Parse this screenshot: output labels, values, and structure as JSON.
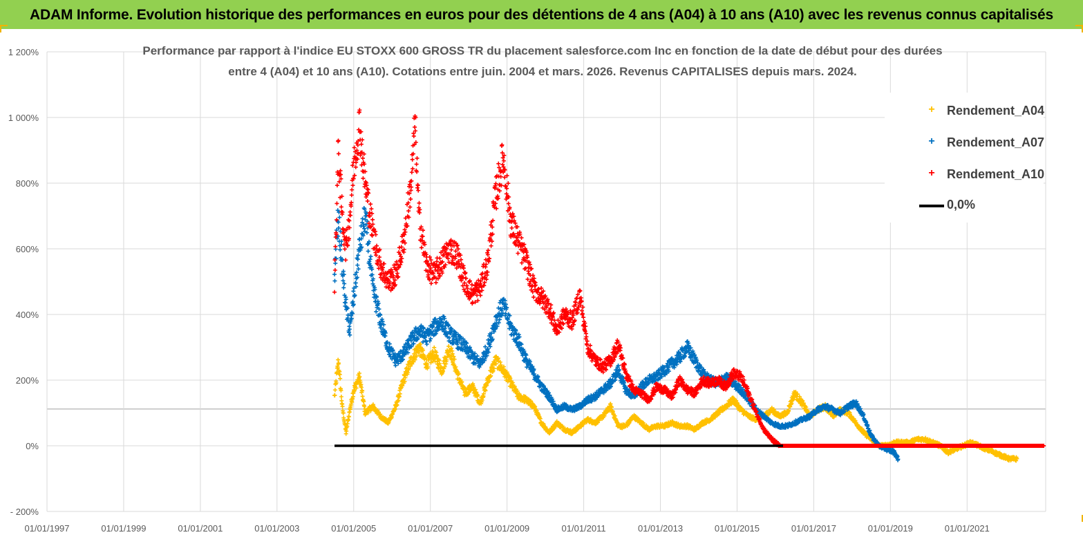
{
  "banner": {
    "title": "ADAM Informe. Evolution historique des performances en euros pour des détentions de 4 ans (A04) à 10 ans (A10) avec les revenus connus capitalisés"
  },
  "colors": {
    "banner_bg": "#92d050",
    "corner_accent": "#f0b400",
    "A04": "#ffc000",
    "A07": "#0070c0",
    "A10": "#ff0000",
    "zero_line": "#000000",
    "grid": "#d9d9d9",
    "axis_text": "#595959"
  },
  "chart_data": {
    "type": "scatter",
    "title_line1": "Performance par rapport à l'indice EU STOXX 600 GROSS TR  du placement salesforce.com Inc en fonction de la date de début pour des durées",
    "title_line2": "entre 4 (A04) et 10 ans (A10). Cotations entre juin. 2004 et mars. 2026. Revenus CAPITALISES depuis mars. 2024.",
    "xlabel": "",
    "ylabel": "",
    "y_ticks": [
      "1 200%",
      "1 000%",
      "800%",
      "600%",
      "400%",
      "200%",
      "0%",
      "- 200%"
    ],
    "y_tick_values": [
      1200,
      1000,
      800,
      600,
      400,
      200,
      0,
      -200
    ],
    "ylim": [
      -200,
      1200
    ],
    "x_ticks": [
      "01/01/1997",
      "01/01/1999",
      "01/01/2001",
      "01/01/2003",
      "01/01/2005",
      "01/01/2007",
      "01/01/2009",
      "01/01/2011",
      "01/01/2013",
      "01/01/2015",
      "01/01/2017",
      "01/01/2019",
      "01/01/2021"
    ],
    "x_tick_years": [
      1997,
      1999,
      2001,
      2003,
      2005,
      2007,
      2009,
      2011,
      2013,
      2015,
      2017,
      2019,
      2021
    ],
    "xlim": [
      1997.0,
      2023.05
    ],
    "grid": true,
    "legend_position": "top-right",
    "legend": [
      "Rendement_A04",
      "Rendement_A07",
      "Rendement_A10",
      "0,0%"
    ],
    "series": [
      {
        "name": "Rendement_A04",
        "marker": "+",
        "x": [
          2004.5,
          2004.6,
          2004.7,
          2004.8,
          2004.9,
          2005.0,
          2005.15,
          2005.3,
          2005.5,
          2005.7,
          2005.9,
          2006.1,
          2006.3,
          2006.5,
          2006.7,
          2006.9,
          2007.1,
          2007.3,
          2007.5,
          2007.7,
          2007.9,
          2008.1,
          2008.3,
          2008.5,
          2008.7,
          2008.9,
          2009.1,
          2009.3,
          2009.5,
          2009.7,
          2009.9,
          2010.1,
          2010.3,
          2010.5,
          2010.7,
          2010.9,
          2011.1,
          2011.3,
          2011.5,
          2011.7,
          2011.9,
          2012.1,
          2012.3,
          2012.5,
          2012.7,
          2012.9,
          2013.1,
          2013.3,
          2013.5,
          2013.7,
          2013.9,
          2014.1,
          2014.3,
          2014.5,
          2014.7,
          2014.9,
          2015.1,
          2015.3,
          2015.5,
          2015.7,
          2015.9,
          2016.1,
          2016.3,
          2016.5,
          2016.7,
          2016.9,
          2017.1,
          2017.3,
          2017.5,
          2017.7,
          2017.9,
          2018.1,
          2018.3,
          2018.5,
          2018.7,
          2018.9,
          2019.1,
          2019.3,
          2019.5,
          2019.7,
          2019.9,
          2020.1,
          2020.3,
          2020.5,
          2020.7,
          2020.9,
          2021.1,
          2021.3,
          2021.5,
          2021.7,
          2021.9,
          2022.1,
          2022.3
        ],
        "y": [
          150,
          260,
          120,
          40,
          110,
          170,
          210,
          100,
          120,
          90,
          70,
          120,
          200,
          260,
          300,
          250,
          280,
          230,
          300,
          220,
          160,
          180,
          130,
          200,
          260,
          230,
          190,
          150,
          140,
          120,
          70,
          40,
          70,
          50,
          40,
          60,
          80,
          70,
          90,
          120,
          60,
          60,
          90,
          70,
          50,
          60,
          60,
          70,
          60,
          60,
          50,
          70,
          80,
          100,
          120,
          140,
          110,
          90,
          80,
          90,
          110,
          90,
          100,
          160,
          130,
          90,
          110,
          120,
          90,
          110,
          100,
          70,
          40,
          20,
          0,
          0,
          10,
          10,
          10,
          20,
          20,
          10,
          0,
          -20,
          -10,
          0,
          10,
          0,
          -10,
          -20,
          -30,
          -40,
          -40
        ]
      },
      {
        "name": "Rendement_A07",
        "marker": "+",
        "x": [
          2004.5,
          2004.6,
          2004.7,
          2004.8,
          2004.9,
          2005.0,
          2005.15,
          2005.3,
          2005.5,
          2005.7,
          2005.9,
          2006.1,
          2006.3,
          2006.5,
          2006.7,
          2006.9,
          2007.1,
          2007.3,
          2007.5,
          2007.7,
          2007.9,
          2008.1,
          2008.3,
          2008.5,
          2008.7,
          2008.9,
          2009.1,
          2009.3,
          2009.5,
          2009.7,
          2009.9,
          2010.1,
          2010.3,
          2010.5,
          2010.7,
          2010.9,
          2011.1,
          2011.3,
          2011.5,
          2011.7,
          2011.9,
          2012.1,
          2012.3,
          2012.5,
          2012.7,
          2012.9,
          2013.1,
          2013.3,
          2013.5,
          2013.7,
          2013.9,
          2014.1,
          2014.3,
          2014.5,
          2014.7,
          2014.9,
          2015.1,
          2015.3,
          2015.5,
          2015.7,
          2015.9,
          2016.1,
          2016.3,
          2016.5,
          2016.7,
          2016.9,
          2017.1,
          2017.3,
          2017.5,
          2017.7,
          2017.9,
          2018.1,
          2018.3,
          2018.5,
          2018.7,
          2018.9,
          2019.1,
          2019.2
        ],
        "y": [
          520,
          700,
          550,
          420,
          350,
          450,
          600,
          700,
          480,
          380,
          300,
          260,
          280,
          320,
          350,
          330,
          360,
          380,
          340,
          320,
          300,
          270,
          250,
          300,
          380,
          430,
          360,
          320,
          260,
          220,
          180,
          150,
          110,
          120,
          110,
          120,
          140,
          150,
          170,
          190,
          230,
          170,
          150,
          180,
          200,
          210,
          230,
          250,
          270,
          300,
          260,
          220,
          200,
          190,
          210,
          190,
          170,
          140,
          110,
          90,
          70,
          60,
          60,
          70,
          80,
          90,
          110,
          120,
          110,
          100,
          120,
          130,
          90,
          30,
          0,
          -10,
          -20,
          -40
        ]
      },
      {
        "name": "Rendement_A10",
        "marker": "+",
        "x": [
          2004.5,
          2004.6,
          2004.7,
          2004.8,
          2004.9,
          2005.0,
          2005.15,
          2005.3,
          2005.5,
          2005.7,
          2005.9,
          2006.1,
          2006.3,
          2006.5,
          2006.6,
          2006.7,
          2006.9,
          2007.1,
          2007.3,
          2007.5,
          2007.7,
          2007.9,
          2008.1,
          2008.3,
          2008.5,
          2008.7,
          2008.9,
          2009.1,
          2009.3,
          2009.5,
          2009.7,
          2009.9,
          2010.1,
          2010.3,
          2010.5,
          2010.7,
          2010.9,
          2011.1,
          2011.3,
          2011.5,
          2011.7,
          2011.9,
          2012.1,
          2012.3,
          2012.5,
          2012.7,
          2012.9,
          2013.1,
          2013.3,
          2013.5,
          2013.7,
          2013.9,
          2014.1,
          2014.3,
          2014.5,
          2014.7,
          2014.9,
          2015.1,
          2015.3,
          2015.5,
          2015.7,
          2015.9,
          2016.1,
          2016.5,
          2017.0,
          2017.5,
          2018.0,
          2018.5,
          2019.0,
          2019.5,
          2020.0,
          2020.5,
          2021.0,
          2021.5,
          2022.0,
          2022.5,
          2023.0
        ],
        "y": [
          500,
          900,
          700,
          600,
          700,
          850,
          980,
          800,
          650,
          550,
          500,
          520,
          620,
          800,
          980,
          700,
          550,
          520,
          560,
          600,
          580,
          500,
          460,
          480,
          560,
          760,
          880,
          680,
          620,
          560,
          480,
          450,
          420,
          350,
          400,
          380,
          460,
          300,
          260,
          240,
          260,
          310,
          220,
          170,
          160,
          140,
          180,
          170,
          150,
          200,
          170,
          160,
          200,
          190,
          200,
          180,
          220,
          210,
          160,
          100,
          50,
          20,
          0,
          0,
          0,
          0,
          0,
          0,
          0,
          0,
          0,
          0,
          0,
          0,
          0,
          0,
          0
        ]
      },
      {
        "name": "0,0%",
        "type": "line",
        "x": [
          2004.5,
          2016.2
        ],
        "y": [
          0,
          0
        ]
      }
    ]
  }
}
